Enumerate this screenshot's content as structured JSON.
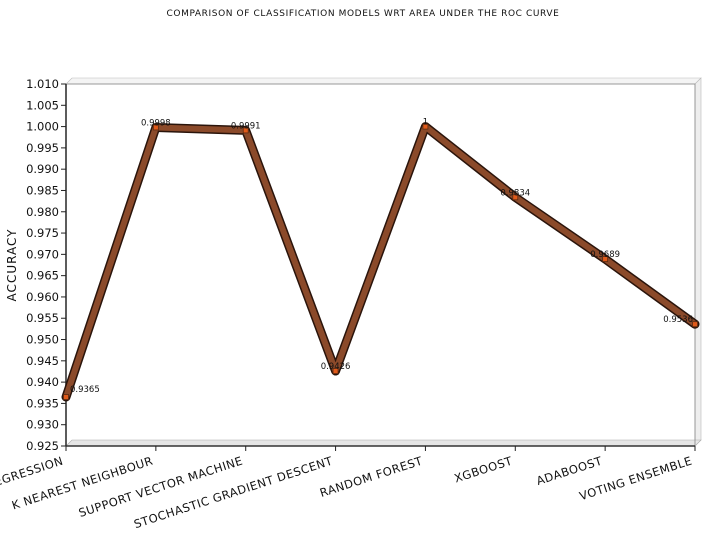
{
  "chart_data": {
    "type": "line",
    "title": "Comparison of Classification Models wrt Area under the ROC curve",
    "xlabel": "",
    "ylabel": "Accuracy",
    "categories": [
      "Logistic Regression",
      "K Nearest Neighbour",
      "Support Vector Machine",
      "Stochastic Gradient Descent",
      "Random Forest",
      "XGBoost",
      "AdaBoost",
      "Voting Ensemble"
    ],
    "x_tick_labels": [
      "egression",
      "K nearest neighbour",
      "support vector machine",
      "stochastic gradient descent",
      "random forest",
      "xgboost",
      "adaboost",
      "voting ensemble"
    ],
    "values": [
      0.9365,
      0.9998,
      0.9991,
      0.9426,
      1.0,
      0.9834,
      0.9689,
      0.9536
    ],
    "data_labels": [
      "0.9365",
      "0.9998",
      "0.9991",
      "0.9426",
      "1",
      "0.9834",
      "0.9689",
      "0.9536"
    ],
    "ylim": [
      0.925,
      1.01
    ],
    "yticks": [
      "0.925",
      "0.930",
      "0.935",
      "0.940",
      "0.945",
      "0.950",
      "0.955",
      "0.960",
      "0.965",
      "0.970",
      "0.975",
      "0.980",
      "0.985",
      "0.990",
      "0.995",
      "1.000",
      "1.005",
      "1.010"
    ],
    "grid": false,
    "legend": "none",
    "colors": {
      "line": "#8b4a2a",
      "line_edge": "#2a140b",
      "marker": "#e05a1a",
      "axis": "#333333"
    }
  }
}
